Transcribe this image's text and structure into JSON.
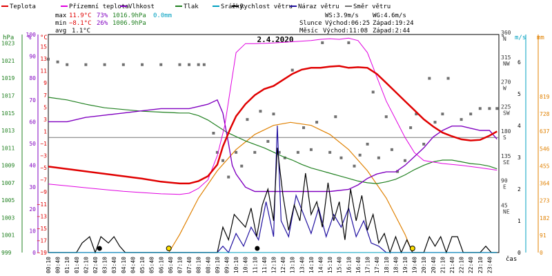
{
  "chart_data": {
    "type": "line",
    "title": "2.4.2020",
    "legend": [
      {
        "name": "Teplota",
        "color": "#e00000"
      },
      {
        "name": "Přízemní teplota",
        "color": "#e000e0"
      },
      {
        "name": "Vlhkost",
        "color": "#8000c0"
      },
      {
        "name": "Tlak",
        "color": "#208020"
      },
      {
        "name": "Srážky",
        "color": "#00a0c0"
      },
      {
        "name": "Rychlost větru",
        "color": "#000000"
      },
      {
        "name": "Náraz větru",
        "color": "#2010a0"
      },
      {
        "name": "Směr větru",
        "color": "#707070"
      }
    ],
    "stats": {
      "max_label": "max",
      "min_label": "min",
      "avg_label": "avg",
      "max_temp": "11.9°C",
      "max_hum": "73%",
      "max_press": "1016.9hPa",
      "max_rain": "0.0mm",
      "min_temp": "−8.1°C",
      "min_hum": "26%",
      "min_press": "1006.9hPa",
      "avg_temp": "1.1°C"
    },
    "info": {
      "ws": "WS:3.9m/s",
      "wg": "WG:4.6m/s",
      "sun_label": "Slunce",
      "sun_rise": "Východ:06:25",
      "sun_set": "Západ:19:24",
      "moon_label": "Měsíc",
      "moon_rise": "Východ:11:08",
      "moon_set": "Západ:2:44"
    },
    "axes": {
      "hpa_label": "hPa",
      "pct_label": "%",
      "degc_label": "°C",
      "deg_label": "°",
      "ms_label": "m/s",
      "mm_label": "mm",
      "x_label": "čas",
      "hpa_ticks": [
        "1023",
        "1021",
        "1019",
        "1017",
        "1015",
        "1013",
        "1011",
        "1009",
        "1007",
        "1005",
        "1003",
        "1001",
        "999"
      ],
      "pct_ticks": [
        "100",
        "90",
        "80",
        "70",
        "60",
        "50",
        "40",
        "30",
        "20",
        "10",
        "0"
      ],
      "temp_ticks": [
        "15",
        "13",
        "11",
        "9",
        "7",
        "5",
        "3",
        "1",
        "−1",
        "−3",
        "−5",
        "−7",
        "−9",
        "−11",
        "−13",
        "−15",
        "−17",
        "−19"
      ],
      "dir_ticks": [
        "360",
        "315",
        "270",
        "225",
        "180",
        "135",
        "90",
        "45"
      ],
      "dir_names": [
        "N",
        "NW",
        "W",
        "SW",
        "S",
        "SE",
        "E",
        "NE"
      ],
      "ms_ticks": [
        "6",
        "5",
        "4",
        "3",
        "2",
        "1",
        "0"
      ],
      "mm_ticks": [
        "819",
        "728",
        "637",
        "546",
        "455",
        "364",
        "273",
        "182",
        "91",
        "0"
      ],
      "time_labels": [
        "00:10",
        "00:40",
        "01:10",
        "01:40",
        "02:10",
        "02:40",
        "03:10",
        "03:40",
        "04:10",
        "04:40",
        "05:10",
        "05:40",
        "06:10",
        "06:40",
        "07:10",
        "07:40",
        "08:10",
        "08:40",
        "09:10",
        "09:40",
        "10:10",
        "10:40",
        "11:10",
        "11:40",
        "12:10",
        "12:40",
        "13:10",
        "13:40",
        "14:10",
        "14:40",
        "15:10",
        "15:40",
        "16:10",
        "16:40",
        "17:10",
        "17:40",
        "18:10",
        "18:40",
        "19:10",
        "19:40",
        "20:10",
        "20:40",
        "21:10",
        "21:40",
        "22:10",
        "22:40",
        "23:10",
        "23:40"
      ],
      "temp_range": [
        -19,
        17
      ],
      "time_range": [
        0,
        24
      ]
    },
    "series": {
      "teplota": [
        [
          0,
          -4.8
        ],
        [
          1,
          -5.2
        ],
        [
          2,
          -5.6
        ],
        [
          3,
          -6.0
        ],
        [
          4,
          -6.4
        ],
        [
          5,
          -6.8
        ],
        [
          6,
          -7.3
        ],
        [
          7,
          -7.6
        ],
        [
          7.5,
          -7.6
        ],
        [
          8,
          -7.2
        ],
        [
          8.5,
          -6.4
        ],
        [
          9,
          -4.5
        ],
        [
          9.3,
          -1.5
        ],
        [
          9.7,
          1.5
        ],
        [
          10,
          3.5
        ],
        [
          10.5,
          5.5
        ],
        [
          11,
          7.0
        ],
        [
          11.5,
          8.0
        ],
        [
          12,
          8.5
        ],
        [
          12.5,
          9.5
        ],
        [
          13,
          10.5
        ],
        [
          13.5,
          11.2
        ],
        [
          14,
          11.5
        ],
        [
          14.5,
          11.5
        ],
        [
          15,
          11.7
        ],
        [
          15.5,
          11.8
        ],
        [
          16,
          11.5
        ],
        [
          16.5,
          11.6
        ],
        [
          17,
          11.5
        ],
        [
          17.5,
          10.5
        ],
        [
          18,
          9.0
        ],
        [
          18.5,
          7.5
        ],
        [
          19,
          6.0
        ],
        [
          19.5,
          4.5
        ],
        [
          20,
          3.0
        ],
        [
          20.5,
          1.8
        ],
        [
          21,
          0.8
        ],
        [
          21.5,
          0.2
        ],
        [
          22,
          -0.3
        ],
        [
          22.5,
          -0.5
        ],
        [
          23,
          -0.4
        ],
        [
          23.5,
          0.3
        ],
        [
          23.9,
          1.0
        ]
      ],
      "prizemni": [
        [
          0,
          -7.7
        ],
        [
          1,
          -8.0
        ],
        [
          2,
          -8.3
        ],
        [
          3,
          -8.6
        ],
        [
          4,
          -8.9
        ],
        [
          5,
          -9.1
        ],
        [
          6,
          -9.3
        ],
        [
          7,
          -9.4
        ],
        [
          7.5,
          -9.2
        ],
        [
          8,
          -8.4
        ],
        [
          8.5,
          -7.0
        ],
        [
          9,
          -3.0
        ],
        [
          9.4,
          2.0
        ],
        [
          9.7,
          8.0
        ],
        [
          10,
          14.0
        ],
        [
          10.5,
          15.5
        ],
        [
          11,
          15.5
        ],
        [
          12,
          15.6
        ],
        [
          13,
          15.8
        ],
        [
          14,
          16.0
        ],
        [
          14.5,
          16.2
        ],
        [
          15,
          16.3
        ],
        [
          15.5,
          16.2
        ],
        [
          16,
          16.4
        ],
        [
          16.5,
          16.0
        ],
        [
          17,
          14.0
        ],
        [
          17.5,
          10.0
        ],
        [
          18,
          6.0
        ],
        [
          18.5,
          3.0
        ],
        [
          19,
          0.0
        ],
        [
          19.5,
          -2.5
        ],
        [
          20,
          -3.8
        ],
        [
          21,
          -4.3
        ],
        [
          22,
          -4.6
        ],
        [
          23,
          -5.0
        ],
        [
          23.9,
          -5.4
        ]
      ],
      "vlhkost": [
        [
          0,
          60
        ],
        [
          1,
          60
        ],
        [
          2,
          62
        ],
        [
          3,
          63
        ],
        [
          4,
          64
        ],
        [
          5,
          65
        ],
        [
          6,
          66
        ],
        [
          7,
          66
        ],
        [
          7.5,
          66
        ],
        [
          8,
          67
        ],
        [
          8.5,
          68
        ],
        [
          9,
          70
        ],
        [
          9.3,
          64
        ],
        [
          9.6,
          50
        ],
        [
          9.8,
          40
        ],
        [
          10,
          36
        ],
        [
          10.5,
          30
        ],
        [
          11,
          28
        ],
        [
          11.5,
          28
        ],
        [
          12,
          28
        ],
        [
          13,
          28
        ],
        [
          14,
          28
        ],
        [
          15,
          28
        ],
        [
          16,
          29
        ],
        [
          16.5,
          31
        ],
        [
          17,
          34
        ],
        [
          17.5,
          36
        ],
        [
          18,
          37
        ],
        [
          18.5,
          37
        ],
        [
          19,
          40
        ],
        [
          19.5,
          44
        ],
        [
          20,
          48
        ],
        [
          20.5,
          53
        ],
        [
          21,
          56
        ],
        [
          21.5,
          58
        ],
        [
          22,
          58
        ],
        [
          22.5,
          57
        ],
        [
          23,
          56
        ],
        [
          23.5,
          56
        ],
        [
          23.9,
          52
        ]
      ],
      "tlak": [
        [
          0,
          1016.8
        ],
        [
          1,
          1016.5
        ],
        [
          2,
          1016.0
        ],
        [
          3,
          1015.6
        ],
        [
          4,
          1015.4
        ],
        [
          5,
          1015.2
        ],
        [
          6,
          1015.1
        ],
        [
          7,
          1015.0
        ],
        [
          7.5,
          1015.0
        ],
        [
          8,
          1014.7
        ],
        [
          8.5,
          1014.2
        ],
        [
          9,
          1013.5
        ],
        [
          9.5,
          1012.8
        ],
        [
          10,
          1012.3
        ],
        [
          10.5,
          1011.8
        ],
        [
          11,
          1011.4
        ],
        [
          11.5,
          1011.0
        ],
        [
          12,
          1010.5
        ],
        [
          12.5,
          1010.0
        ],
        [
          13,
          1009.6
        ],
        [
          13.5,
          1009.1
        ],
        [
          14,
          1008.7
        ],
        [
          14.5,
          1008.4
        ],
        [
          15,
          1008.1
        ],
        [
          15.5,
          1007.8
        ],
        [
          16,
          1007.5
        ],
        [
          16.5,
          1007.2
        ],
        [
          17,
          1007.0
        ],
        [
          17.5,
          1006.9
        ],
        [
          18,
          1007.1
        ],
        [
          18.5,
          1007.4
        ],
        [
          19,
          1007.9
        ],
        [
          19.5,
          1008.5
        ],
        [
          20,
          1009.0
        ],
        [
          20.5,
          1009.4
        ],
        [
          21,
          1009.6
        ],
        [
          21.5,
          1009.6
        ],
        [
          22,
          1009.4
        ],
        [
          22.5,
          1009.2
        ],
        [
          23,
          1009.1
        ],
        [
          23.5,
          1008.9
        ],
        [
          23.9,
          1008.6
        ]
      ],
      "rychlost": [
        [
          0,
          0
        ],
        [
          1.5,
          0
        ],
        [
          1.8,
          0.3
        ],
        [
          2.2,
          0.5
        ],
        [
          2.5,
          0
        ],
        [
          2.8,
          0.5
        ],
        [
          3.2,
          0.3
        ],
        [
          3.5,
          0.5
        ],
        [
          3.8,
          0.2
        ],
        [
          4.1,
          0
        ],
        [
          9,
          0
        ],
        [
          9.3,
          0.8
        ],
        [
          9.6,
          0.4
        ],
        [
          9.9,
          1.2
        ],
        [
          10.2,
          1.0
        ],
        [
          10.5,
          0.8
        ],
        [
          10.8,
          1.4
        ],
        [
          11.1,
          0.5
        ],
        [
          11.4,
          1.5
        ],
        [
          11.7,
          2.0
        ],
        [
          12,
          1.0
        ],
        [
          12.2,
          3.3
        ],
        [
          12.5,
          1.8
        ],
        [
          12.8,
          0.7
        ],
        [
          13.1,
          1.5
        ],
        [
          13.4,
          1.0
        ],
        [
          13.7,
          2.5
        ],
        [
          14,
          1.2
        ],
        [
          14.3,
          1.6
        ],
        [
          14.6,
          0.8
        ],
        [
          14.9,
          2.2
        ],
        [
          15.2,
          1.0
        ],
        [
          15.5,
          1.6
        ],
        [
          15.8,
          0.4
        ],
        [
          16.1,
          2.0
        ],
        [
          16.4,
          1.0
        ],
        [
          16.7,
          1.8
        ],
        [
          17,
          0.7
        ],
        [
          17.3,
          1.2
        ],
        [
          17.6,
          0.3
        ],
        [
          17.9,
          0.6
        ],
        [
          18.2,
          0
        ],
        [
          18.5,
          0.5
        ],
        [
          18.8,
          0
        ],
        [
          19.1,
          0.4
        ],
        [
          19.4,
          0
        ],
        [
          20,
          0
        ],
        [
          20.3,
          0.5
        ],
        [
          20.6,
          0.2
        ],
        [
          20.9,
          0.5
        ],
        [
          21.2,
          0
        ],
        [
          21.5,
          0.5
        ],
        [
          21.8,
          0.5
        ],
        [
          22.1,
          0
        ],
        [
          22.5,
          0
        ],
        [
          23,
          0
        ],
        [
          23.3,
          0.2
        ],
        [
          23.6,
          0
        ],
        [
          23.9,
          0
        ]
      ],
      "naraz": [
        [
          0,
          0
        ],
        [
          9,
          0
        ],
        [
          9.3,
          0.2
        ],
        [
          9.6,
          0
        ],
        [
          10,
          0.6
        ],
        [
          10.4,
          0.2
        ],
        [
          10.8,
          0.8
        ],
        [
          11.2,
          0.4
        ],
        [
          11.6,
          1.6
        ],
        [
          12,
          0.5
        ],
        [
          12.2,
          4.0
        ],
        [
          12.4,
          1.0
        ],
        [
          12.8,
          0.5
        ],
        [
          13.2,
          1.8
        ],
        [
          13.6,
          1.2
        ],
        [
          14,
          0.6
        ],
        [
          14.4,
          1.4
        ],
        [
          14.8,
          0.5
        ],
        [
          15.2,
          1.2
        ],
        [
          15.6,
          0.8
        ],
        [
          16,
          1.4
        ],
        [
          16.4,
          0.5
        ],
        [
          16.8,
          1.0
        ],
        [
          17.2,
          0.3
        ],
        [
          17.6,
          0.2
        ],
        [
          18,
          0
        ],
        [
          23.9,
          0
        ]
      ],
      "srazky": [
        [
          0,
          0
        ],
        [
          23.9,
          0
        ]
      ],
      "smer": [
        [
          0,
          315
        ],
        [
          0.5,
          310
        ],
        [
          1,
          305
        ],
        [
          2,
          305
        ],
        [
          3,
          305
        ],
        [
          4,
          305
        ],
        [
          5,
          305
        ],
        [
          6,
          305
        ],
        [
          7,
          305
        ],
        [
          7.5,
          305
        ],
        [
          8,
          305
        ],
        [
          8.3,
          305
        ],
        [
          8.8,
          180
        ],
        [
          9,
          145
        ],
        [
          9.3,
          130
        ],
        [
          9.6,
          100
        ],
        [
          10,
          145
        ],
        [
          10.3,
          120
        ],
        [
          10.6,
          205
        ],
        [
          11,
          145
        ],
        [
          11.3,
          220
        ],
        [
          11.7,
          165
        ],
        [
          12,
          215
        ],
        [
          12.3,
          145
        ],
        [
          12.6,
          135
        ],
        [
          13,
          295
        ],
        [
          13.3,
          145
        ],
        [
          13.6,
          190
        ],
        [
          14,
          150
        ],
        [
          14.3,
          200
        ],
        [
          14.6,
          345
        ],
        [
          15,
          145
        ],
        [
          15.3,
          210
        ],
        [
          15.6,
          135
        ],
        [
          16,
          345
        ],
        [
          16.3,
          120
        ],
        [
          16.6,
          140
        ],
        [
          17,
          160
        ],
        [
          17.3,
          255
        ],
        [
          17.6,
          135
        ],
        [
          18,
          210
        ],
        [
          18.3,
          150
        ],
        [
          18.6,
          110
        ],
        [
          19,
          130
        ],
        [
          19.3,
          190
        ],
        [
          19.6,
          215
        ],
        [
          20,
          160
        ],
        [
          20.3,
          280
        ],
        [
          20.6,
          200
        ],
        [
          21,
          215
        ],
        [
          21.3,
          280
        ],
        [
          22,
          205
        ],
        [
          22.5,
          215
        ],
        [
          23,
          225
        ],
        [
          23.5,
          225
        ],
        [
          23.9,
          225
        ]
      ],
      "sun_curve": [
        [
          6.42,
          -19
        ],
        [
          7,
          -16
        ],
        [
          8,
          -10
        ],
        [
          9,
          -5.5
        ],
        [
          10,
          -2.0
        ],
        [
          11,
          0.5
        ],
        [
          12,
          2.0
        ],
        [
          12.9,
          2.5
        ],
        [
          14,
          2.0
        ],
        [
          15,
          0.5
        ],
        [
          16,
          -2.0
        ],
        [
          17,
          -5.5
        ],
        [
          18,
          -10
        ],
        [
          19,
          -16
        ],
        [
          19.4,
          -19
        ]
      ]
    }
  }
}
